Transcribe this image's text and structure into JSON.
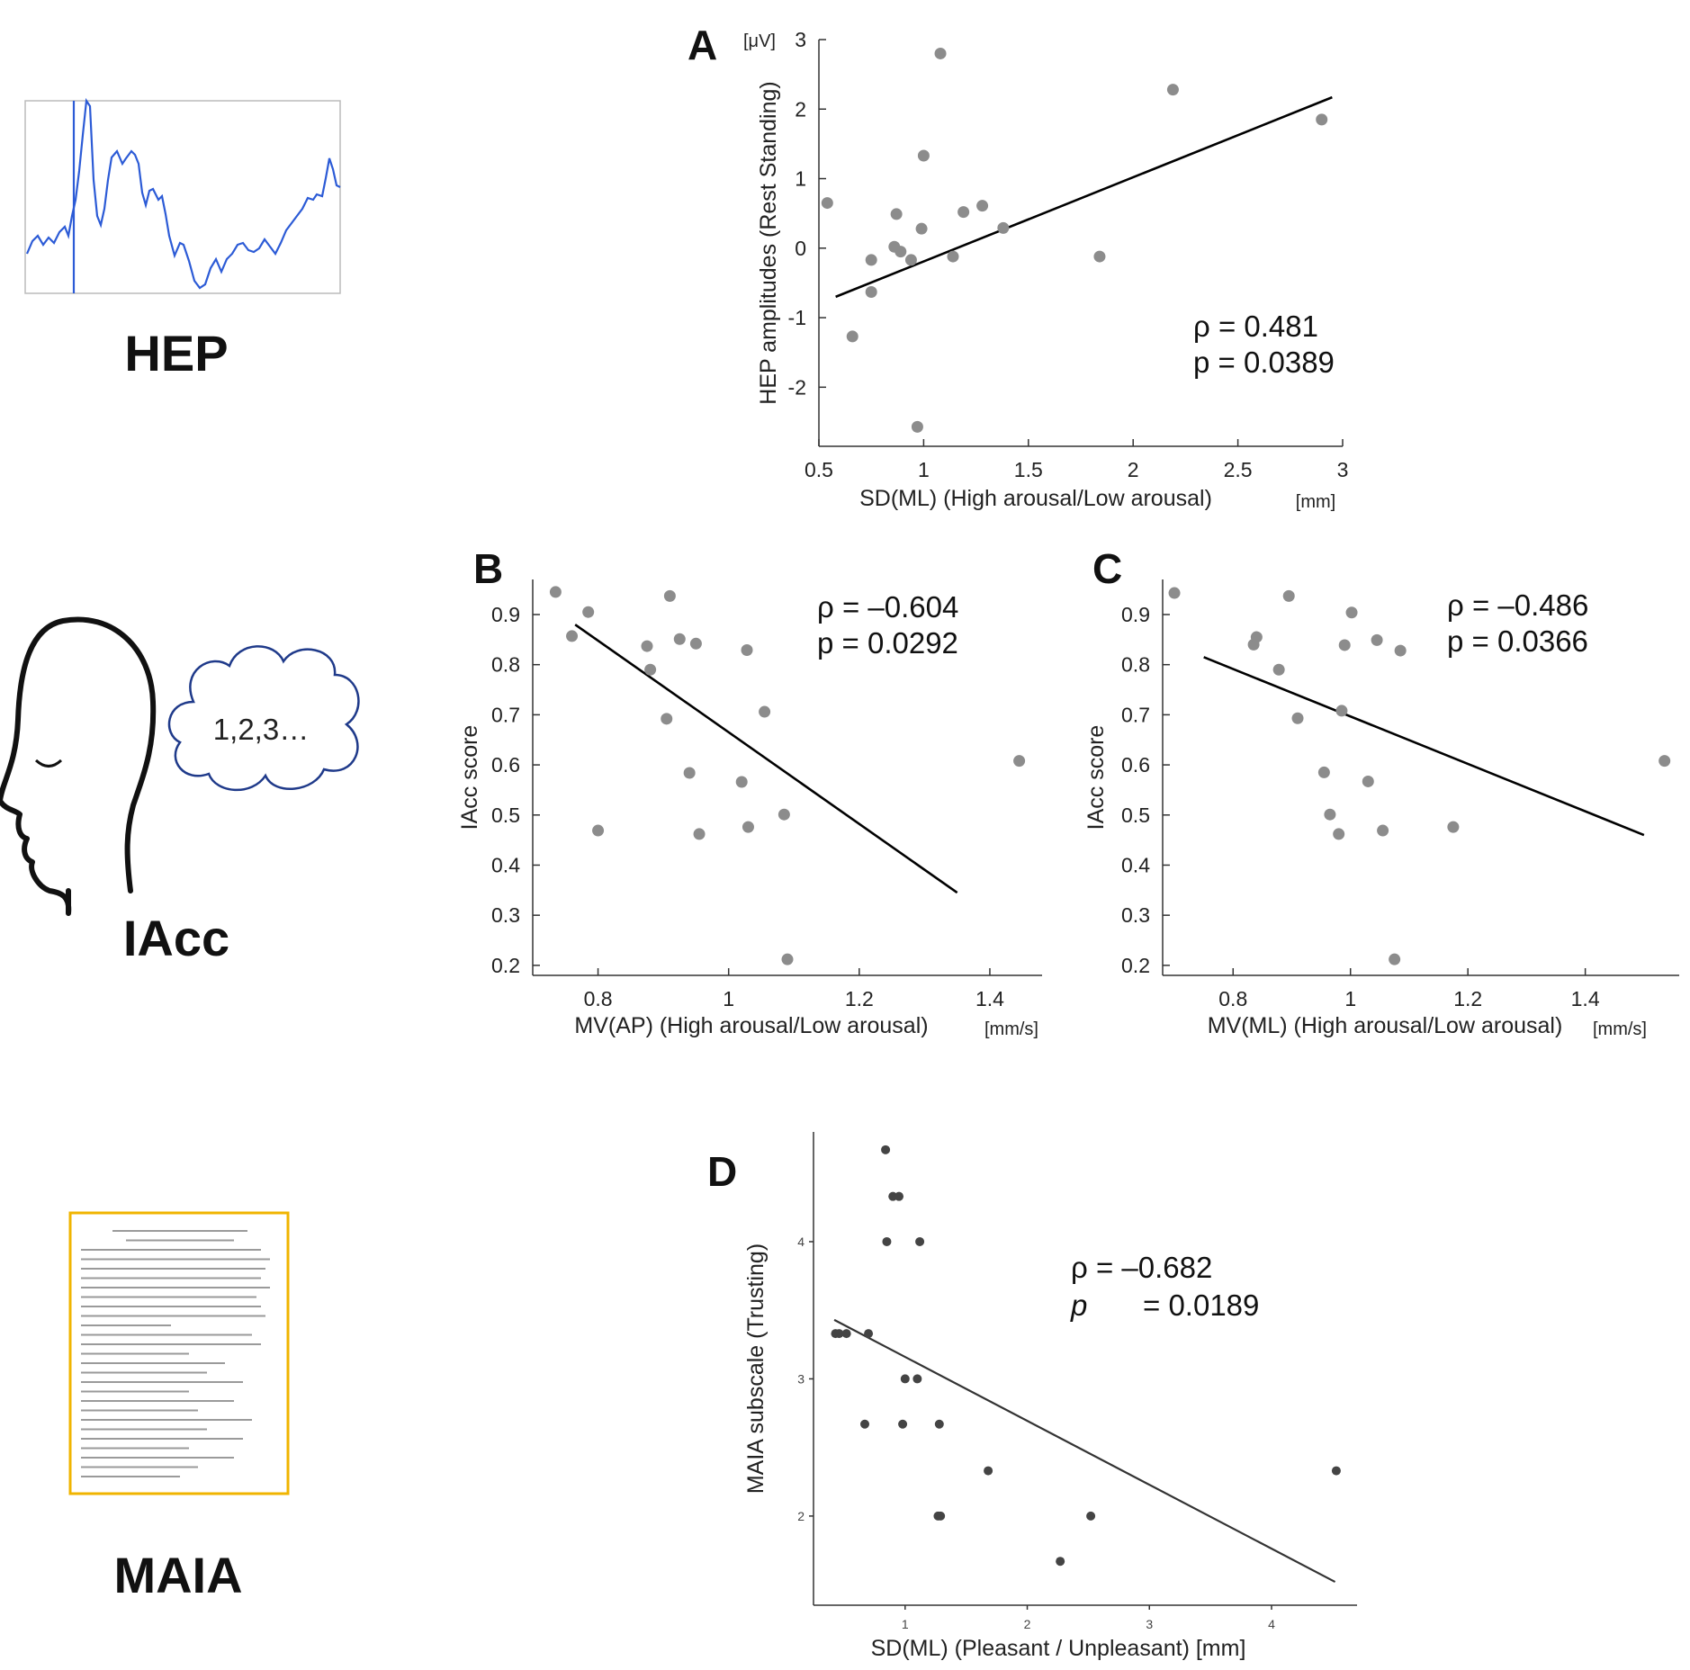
{
  "side_labels": {
    "hep": "HEP",
    "iacc": "IAcc",
    "maia": "MAIA",
    "cloud_text": "1,2,3…"
  },
  "chart_data": [
    {
      "panel": "A",
      "type": "scatter",
      "xlabel": "SD(ML) (High arousal/Low arousal)",
      "xunit": "[mm]",
      "ylabel": "HEP amplitudes (Rest Standing)",
      "yunit": "[μV]",
      "xlim": [
        0.5,
        3
      ],
      "ylim": [
        -2.85,
        3
      ],
      "xticks": [
        "0.5",
        "1",
        "1.5",
        "2",
        "2.5",
        "3"
      ],
      "yticks": [
        "3",
        "2",
        "1",
        "0",
        "-1",
        "-2"
      ],
      "points": [
        {
          "x": 0.54,
          "y": 0.65
        },
        {
          "x": 0.66,
          "y": -1.27
        },
        {
          "x": 0.75,
          "y": -0.17
        },
        {
          "x": 0.75,
          "y": -0.63
        },
        {
          "x": 0.86,
          "y": 0.02
        },
        {
          "x": 0.87,
          "y": 0.49
        },
        {
          "x": 0.89,
          "y": -0.05
        },
        {
          "x": 0.94,
          "y": -0.17
        },
        {
          "x": 0.97,
          "y": -2.57
        },
        {
          "x": 0.99,
          "y": 0.28
        },
        {
          "x": 1.0,
          "y": 1.33
        },
        {
          "x": 1.08,
          "y": 2.8
        },
        {
          "x": 1.14,
          "y": -0.12
        },
        {
          "x": 1.19,
          "y": 0.52
        },
        {
          "x": 1.28,
          "y": 0.61
        },
        {
          "x": 1.38,
          "y": 0.29
        },
        {
          "x": 1.84,
          "y": -0.12
        },
        {
          "x": 2.19,
          "y": 2.28
        },
        {
          "x": 2.9,
          "y": 1.85
        }
      ],
      "fit": [
        {
          "x": 0.58,
          "y": -0.7
        },
        {
          "x": 2.95,
          "y": 2.17
        }
      ],
      "stats": {
        "rho": "ρ = 0.481",
        "p": "p = 0.0389"
      }
    },
    {
      "panel": "B",
      "type": "scatter",
      "xlabel": "MV(AP) (High arousal/Low arousal)",
      "xunit": "[mm/s]",
      "ylabel": "IAcc score",
      "xlim": [
        0.7,
        1.48
      ],
      "ylim": [
        0.18,
        0.97
      ],
      "xticks": [
        "0.8",
        "1",
        "1.2",
        "1.4"
      ],
      "yticks": [
        "0.9",
        "0.8",
        "0.7",
        "0.6",
        "0.5",
        "0.4",
        "0.3",
        "0.2"
      ],
      "points": [
        {
          "x": 0.735,
          "y": 0.945
        },
        {
          "x": 0.76,
          "y": 0.857
        },
        {
          "x": 0.785,
          "y": 0.905
        },
        {
          "x": 0.8,
          "y": 0.469
        },
        {
          "x": 0.875,
          "y": 0.837
        },
        {
          "x": 0.88,
          "y": 0.79
        },
        {
          "x": 0.905,
          "y": 0.692
        },
        {
          "x": 0.91,
          "y": 0.937
        },
        {
          "x": 0.925,
          "y": 0.851
        },
        {
          "x": 0.94,
          "y": 0.584
        },
        {
          "x": 0.95,
          "y": 0.842
        },
        {
          "x": 0.955,
          "y": 0.462
        },
        {
          "x": 1.02,
          "y": 0.566
        },
        {
          "x": 1.028,
          "y": 0.829
        },
        {
          "x": 1.03,
          "y": 0.476
        },
        {
          "x": 1.055,
          "y": 0.706
        },
        {
          "x": 1.085,
          "y": 0.501
        },
        {
          "x": 1.09,
          "y": 0.212
        },
        {
          "x": 1.445,
          "y": 0.608
        }
      ],
      "fit": [
        {
          "x": 0.765,
          "y": 0.88
        },
        {
          "x": 1.35,
          "y": 0.345
        }
      ],
      "stats": {
        "rho": "ρ = –0.604",
        "p": "p = 0.0292"
      }
    },
    {
      "panel": "C",
      "type": "scatter",
      "xlabel": "MV(ML) (High arousal/Low arousal)",
      "xunit": "[mm/s]",
      "ylabel": "IAcc score",
      "xlim": [
        0.68,
        1.56
      ],
      "ylim": [
        0.18,
        0.97
      ],
      "xticks": [
        "0.8",
        "1",
        "1.2",
        "1.4"
      ],
      "yticks": [
        "0.9",
        "0.8",
        "0.7",
        "0.6",
        "0.5",
        "0.4",
        "0.3",
        "0.2"
      ],
      "points": [
        {
          "x": 0.7,
          "y": 0.943
        },
        {
          "x": 0.835,
          "y": 0.84
        },
        {
          "x": 0.84,
          "y": 0.855
        },
        {
          "x": 0.878,
          "y": 0.79
        },
        {
          "x": 0.895,
          "y": 0.937
        },
        {
          "x": 0.91,
          "y": 0.693
        },
        {
          "x": 0.955,
          "y": 0.585
        },
        {
          "x": 0.965,
          "y": 0.501
        },
        {
          "x": 0.98,
          "y": 0.462
        },
        {
          "x": 0.985,
          "y": 0.708
        },
        {
          "x": 0.99,
          "y": 0.839
        },
        {
          "x": 1.002,
          "y": 0.904
        },
        {
          "x": 1.03,
          "y": 0.567
        },
        {
          "x": 1.045,
          "y": 0.849
        },
        {
          "x": 1.055,
          "y": 0.469
        },
        {
          "x": 1.075,
          "y": 0.212
        },
        {
          "x": 1.085,
          "y": 0.828
        },
        {
          "x": 1.175,
          "y": 0.476
        },
        {
          "x": 1.535,
          "y": 0.608
        }
      ],
      "fit": [
        {
          "x": 0.75,
          "y": 0.815
        },
        {
          "x": 1.5,
          "y": 0.46
        }
      ],
      "stats": {
        "rho": "ρ = –0.486",
        "p": "p = 0.0366"
      }
    },
    {
      "panel": "D",
      "type": "scatter",
      "xlabel": "SD(ML) (Pleasant / Unpleasant) [mm]",
      "ylabel": "MAIA subscale (Trusting)",
      "xlim": [
        0.25,
        4.7
      ],
      "ylim": [
        1.35,
        4.8
      ],
      "xticks": [
        "1",
        "2",
        "3",
        "4"
      ],
      "yticks": [
        "4",
        "3",
        "2"
      ],
      "points": [
        {
          "x": 0.43,
          "y": 3.33
        },
        {
          "x": 0.46,
          "y": 3.33
        },
        {
          "x": 0.52,
          "y": 3.33
        },
        {
          "x": 0.67,
          "y": 2.67
        },
        {
          "x": 0.7,
          "y": 3.33
        },
        {
          "x": 0.84,
          "y": 4.67
        },
        {
          "x": 0.85,
          "y": 4.0
        },
        {
          "x": 0.9,
          "y": 4.33
        },
        {
          "x": 0.95,
          "y": 4.33
        },
        {
          "x": 0.98,
          "y": 2.67
        },
        {
          "x": 1.0,
          "y": 3.0
        },
        {
          "x": 1.1,
          "y": 3.0
        },
        {
          "x": 1.12,
          "y": 4.0
        },
        {
          "x": 1.27,
          "y": 2.0
        },
        {
          "x": 1.28,
          "y": 2.67
        },
        {
          "x": 1.29,
          "y": 2.0
        },
        {
          "x": 1.68,
          "y": 2.33
        },
        {
          "x": 2.27,
          "y": 1.67
        },
        {
          "x": 2.52,
          "y": 2.0
        },
        {
          "x": 4.53,
          "y": 2.33
        }
      ],
      "fit": [
        {
          "x": 0.42,
          "y": 3.43
        },
        {
          "x": 4.52,
          "y": 1.52
        }
      ],
      "stats": {
        "rho": "ρ = –0.682",
        "p_prefix": "p",
        "p_value": "= 0.0189"
      }
    }
  ]
}
